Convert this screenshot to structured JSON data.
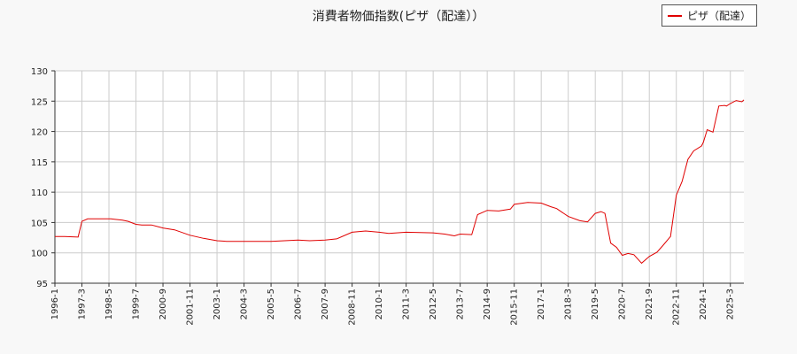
{
  "chart_data": {
    "type": "line",
    "title": "消費者物価指数(ピザ（配達））",
    "xlabel": "",
    "ylabel": "",
    "ylim": [
      95,
      130
    ],
    "yticks": [
      95,
      100,
      105,
      110,
      115,
      120,
      125,
      130
    ],
    "xticks": [
      "1996-1",
      "1997-3",
      "1998-5",
      "1999-7",
      "2000-9",
      "2001-11",
      "2003-1",
      "2004-3",
      "2005-5",
      "2006-7",
      "2007-9",
      "2008-11",
      "2010-1",
      "2011-3",
      "2012-5",
      "2013-7",
      "2014-9",
      "2015-11",
      "2017-1",
      "2018-3",
      "2019-5",
      "2020-7",
      "2021-9",
      "2022-11",
      "2024-1",
      "2025-3"
    ],
    "grid": true,
    "legend_position": "top-right",
    "series": [
      {
        "name": "ピザ（配達）",
        "color": "#e00000",
        "x": [
          "1996-1",
          "1996-6",
          "1997-1",
          "1997-3",
          "1997-6",
          "1998-1",
          "1998-6",
          "1998-12",
          "1999-3",
          "1999-7",
          "1999-10",
          "2000-3",
          "2000-9",
          "2001-3",
          "2001-11",
          "2002-6",
          "2003-1",
          "2003-6",
          "2004-3",
          "2005-5",
          "2006-7",
          "2007-1",
          "2007-9",
          "2008-3",
          "2008-11",
          "2009-6",
          "2010-1",
          "2010-6",
          "2011-3",
          "2012-5",
          "2012-11",
          "2013-4",
          "2013-7",
          "2014-1",
          "2014-4",
          "2014-9",
          "2015-3",
          "2015-9",
          "2015-11",
          "2016-6",
          "2017-1",
          "2017-6",
          "2017-9",
          "2018-3",
          "2018-9",
          "2019-1",
          "2019-5",
          "2019-8",
          "2019-10",
          "2020-1",
          "2020-4",
          "2020-7",
          "2020-10",
          "2021-1",
          "2021-5",
          "2021-9",
          "2022-1",
          "2022-4",
          "2022-8",
          "2022-11",
          "2023-2",
          "2023-5",
          "2023-8",
          "2023-12",
          "2024-1",
          "2024-3",
          "2024-6",
          "2024-9",
          "2024-12",
          "2025-1",
          "2025-3",
          "2025-6",
          "2025-9",
          "2025-10"
        ],
        "values": [
          102.7,
          102.7,
          102.6,
          105.2,
          105.6,
          105.6,
          105.6,
          105.4,
          105.2,
          104.7,
          104.6,
          104.6,
          104.1,
          103.8,
          102.9,
          102.4,
          102.0,
          101.9,
          101.9,
          101.9,
          102.1,
          102.0,
          102.1,
          102.3,
          103.4,
          103.6,
          103.4,
          103.2,
          103.4,
          103.3,
          103.1,
          102.8,
          103.1,
          103.0,
          106.3,
          107.0,
          106.9,
          107.2,
          108.0,
          108.3,
          108.2,
          107.6,
          107.3,
          106.0,
          105.3,
          105.1,
          106.5,
          106.8,
          106.5,
          101.6,
          100.9,
          99.6,
          99.9,
          99.7,
          98.3,
          99.4,
          100.1,
          101.2,
          102.7,
          109.5,
          111.8,
          115.4,
          116.8,
          117.6,
          118.2,
          120.3,
          119.9,
          124.2,
          124.3,
          124.2,
          124.6,
          125.1,
          124.9,
          125.2
        ]
      }
    ]
  }
}
